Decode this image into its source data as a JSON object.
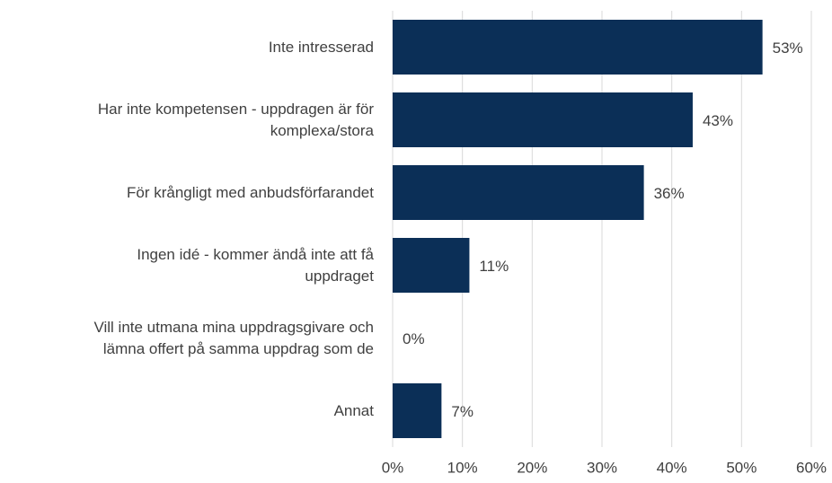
{
  "chart_data": {
    "type": "bar",
    "orientation": "horizontal",
    "categories": [
      "Inte intresserad",
      "Har inte kompetensen - uppdragen är för\nkomplexa/stora",
      "För krångligt med anbudsförfarandet",
      "Ingen idé - kommer ändå inte att få\nuppdraget",
      "Vill inte utmana mina uppdragsgivare och\nlämna offert på samma uppdrag som de",
      "Annat"
    ],
    "values": [
      53,
      43,
      36,
      11,
      0,
      7
    ],
    "value_labels": [
      "53%",
      "43%",
      "36%",
      "11%",
      "0%",
      "7%"
    ],
    "color": "#0b2f57",
    "xlim": [
      0,
      60
    ],
    "xticks": [
      {
        "value": 0,
        "label": "0%"
      },
      {
        "value": 10,
        "label": "10%"
      },
      {
        "value": 20,
        "label": "20%"
      },
      {
        "value": 30,
        "label": "30%"
      },
      {
        "value": 40,
        "label": "40%"
      },
      {
        "value": 50,
        "label": "50%"
      },
      {
        "value": 60,
        "label": "60%"
      }
    ],
    "grid": true
  }
}
